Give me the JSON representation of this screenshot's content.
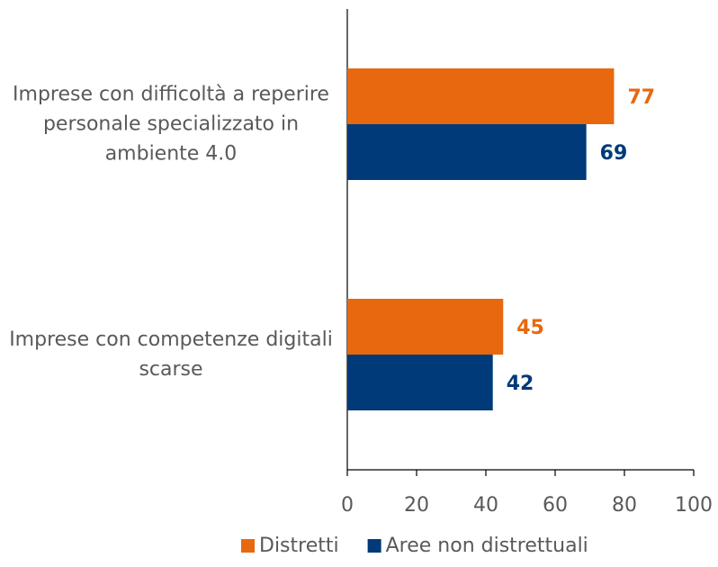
{
  "chart_data": {
    "type": "bar",
    "orientation": "horizontal",
    "categories": [
      "Imprese con difficoltà a reperire personale specializzato in ambiente 4.0",
      "Imprese con competenze digitali scarse"
    ],
    "series": [
      {
        "name": "Distretti",
        "color": "#e8680f",
        "values": [
          77,
          45
        ]
      },
      {
        "name": "Aree non distrettuali",
        "color": "#003a78",
        "values": [
          69,
          42
        ]
      }
    ],
    "xlim": [
      0,
      100
    ],
    "xticks": [
      0,
      20,
      40,
      60,
      80,
      100
    ],
    "legend": "bottom"
  }
}
